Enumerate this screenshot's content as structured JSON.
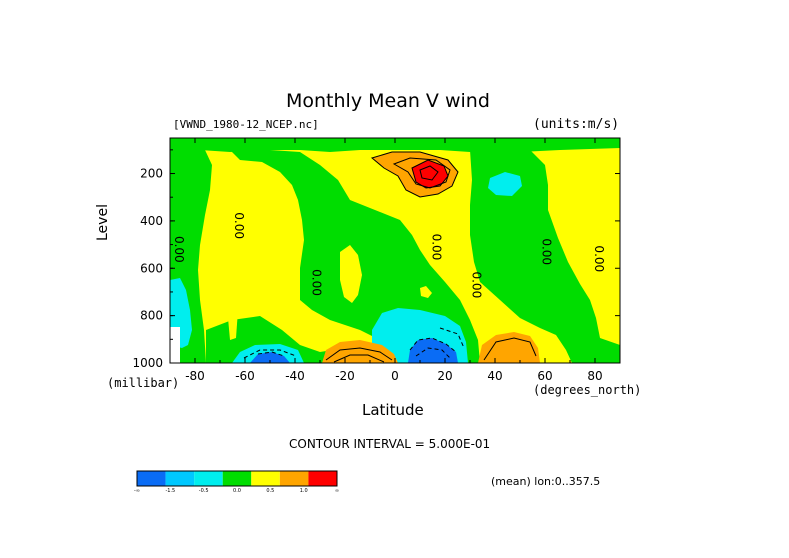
{
  "chart_data": {
    "type": "heatmap",
    "title": "Monthly Mean V wind",
    "dataset": "[VWND_1980-12_NCEP.nc]",
    "units": "(units:m/s)",
    "xlabel": "Latitude",
    "xunits": "(degrees_north)",
    "ylabel": "Level",
    "yunits": "(millibar)",
    "xlim": [
      -90,
      90
    ],
    "ylim": [
      1000,
      50
    ],
    "x_ticks": [
      -80,
      -60,
      -40,
      -20,
      0,
      20,
      40,
      60,
      80
    ],
    "y_ticks": [
      200,
      400,
      600,
      800,
      1000
    ],
    "contour_interval": "CONTOUR INTERVAL = 5.000E-01",
    "mean_note": "(mean) lon:0..357.5",
    "zero_contour_labels": [
      "0.00",
      "0.00",
      "0.00",
      "0.00",
      "0.00",
      "0.00",
      "0.00"
    ],
    "colorbar": {
      "colors": [
        "#0a6cf5",
        "#00c8ff",
        "#00eeee",
        "#00dd00",
        "#ffff00",
        "#ffa500",
        "#ff0000"
      ],
      "labels": [
        "-∞",
        "-1.5",
        "-0.5",
        "0.0",
        "0.5",
        "1.0",
        "∞"
      ]
    }
  }
}
